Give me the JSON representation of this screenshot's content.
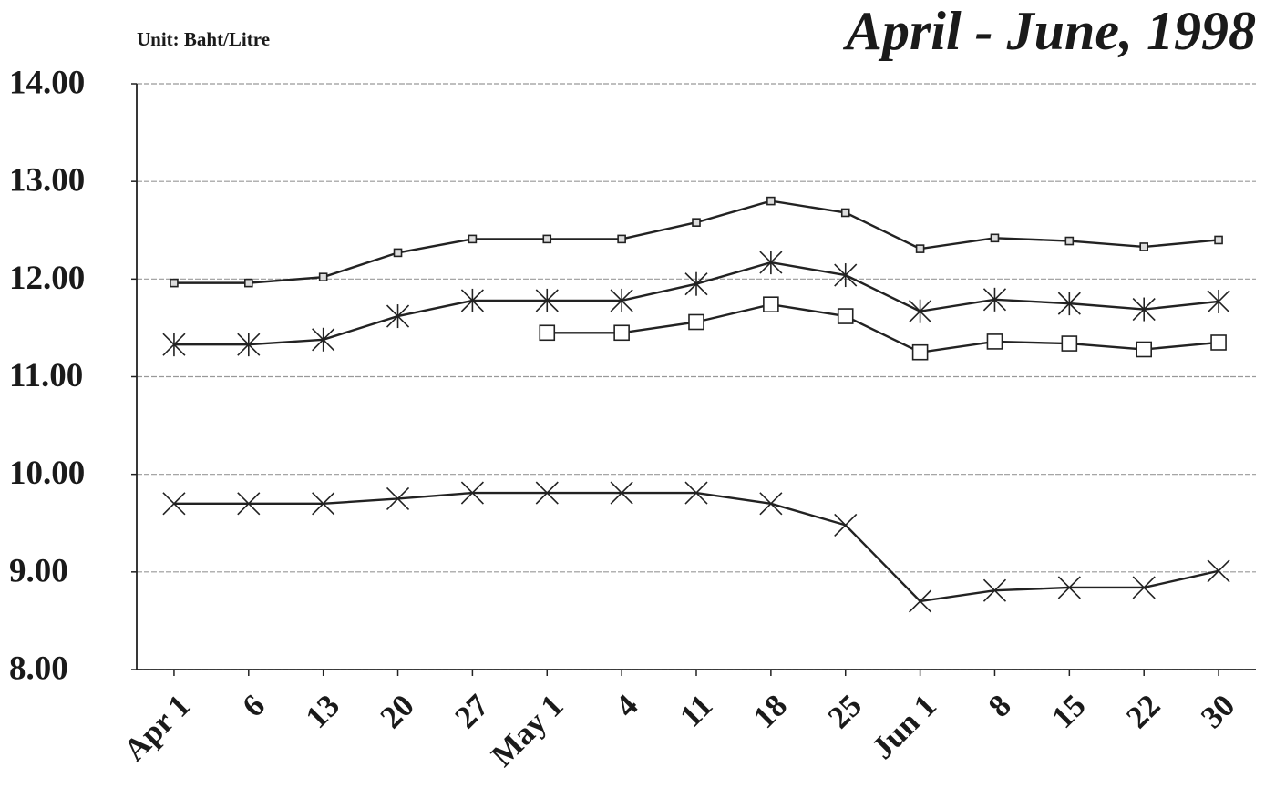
{
  "chart_data": {
    "type": "line",
    "title": "April - June, 1998",
    "subtitle": "Unit: Baht/Litre",
    "categories": [
      "Apr 1",
      "6",
      "13",
      "20",
      "27",
      "May 1",
      "4",
      "11",
      "18",
      "25",
      "Jun 1",
      "8",
      "15",
      "22",
      "30"
    ],
    "series": [
      {
        "color": "#222222",
        "marker": "small-square",
        "values": [
          11.96,
          11.96,
          12.02,
          12.27,
          12.41,
          12.41,
          12.41,
          12.58,
          12.8,
          12.68,
          12.31,
          12.42,
          12.39,
          12.33,
          12.4
        ]
      },
      {
        "color": "#222222",
        "marker": "asterisk",
        "values": [
          11.33,
          11.33,
          11.38,
          11.62,
          11.78,
          11.78,
          11.78,
          11.95,
          12.17,
          12.04,
          11.67,
          11.79,
          11.75,
          11.69,
          11.77
        ]
      },
      {
        "color": "#222222",
        "marker": "square",
        "values": [
          null,
          null,
          null,
          null,
          null,
          11.45,
          11.45,
          11.56,
          11.74,
          11.62,
          11.25,
          11.36,
          11.34,
          11.28,
          11.35
        ]
      },
      {
        "color": "#222222",
        "marker": "cross",
        "values": [
          9.7,
          9.7,
          9.7,
          9.75,
          9.81,
          9.81,
          9.81,
          9.81,
          9.7,
          9.48,
          8.7,
          8.81,
          8.84,
          8.84,
          9.01
        ]
      }
    ],
    "ylim": [
      8,
      14
    ],
    "yticks": [
      {
        "value": 8,
        "label": "8.00"
      },
      {
        "value": 9,
        "label": "9.00"
      },
      {
        "value": 10,
        "label": "10.00"
      },
      {
        "value": 11,
        "label": "11.00"
      },
      {
        "value": 12,
        "label": "12.00"
      },
      {
        "value": 13,
        "label": "13.00"
      },
      {
        "value": 14,
        "label": "14.00"
      }
    ],
    "grid": true
  }
}
